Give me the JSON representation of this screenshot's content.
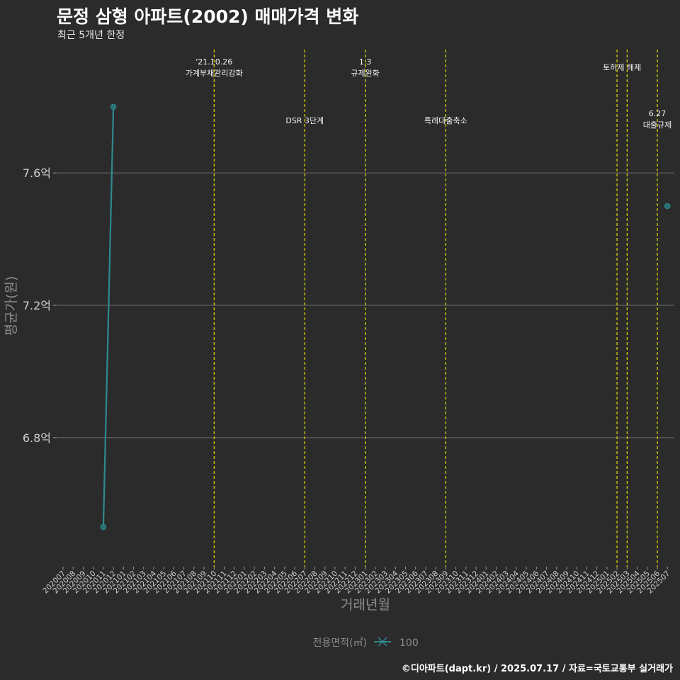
{
  "chart_data": {
    "type": "line",
    "title": "문정 삼형 아파트(2002) 매매가격 변화",
    "subtitle": "최근 5개년 한정",
    "xlabel": "거래년월",
    "ylabel": "평균가(원)",
    "categories": [
      "202007",
      "202008",
      "202009",
      "202010",
      "202011",
      "202012",
      "202101",
      "202102",
      "202103",
      "202104",
      "202105",
      "202106",
      "202107",
      "202108",
      "202109",
      "202110",
      "202111",
      "202112",
      "202201",
      "202202",
      "202203",
      "202204",
      "202205",
      "202206",
      "202207",
      "202208",
      "202209",
      "202210",
      "202211",
      "202212",
      "202301",
      "202302",
      "202303",
      "202304",
      "202305",
      "202306",
      "202307",
      "202308",
      "202309",
      "202310",
      "202311",
      "202312",
      "202401",
      "202402",
      "202403",
      "202404",
      "202405",
      "202406",
      "202407",
      "202408",
      "202409",
      "202410",
      "202411",
      "202412",
      "202501",
      "202502",
      "202503",
      "202504",
      "202505",
      "202506",
      "202507"
    ],
    "y_ticks": [
      6.8,
      7.2,
      7.6
    ],
    "y_tick_labels": [
      "6.8억",
      "7.2억",
      "7.6억"
    ],
    "ylim": [
      6.41,
      7.99
    ],
    "unit": "억",
    "series": [
      {
        "name": "100",
        "color": "#2e8a8f",
        "points": [
          {
            "x": "202011",
            "y": 6.53
          },
          {
            "x": "202012",
            "y": 7.8
          },
          {
            "x": "202507",
            "y": 7.5
          }
        ],
        "segments": [
          [
            "202011",
            "202012"
          ]
        ]
      }
    ],
    "events": [
      {
        "x": "202110",
        "lines": [
          "'21.10.26",
          "가계부채관리강화"
        ],
        "row": 0
      },
      {
        "x": "202207",
        "lines": [
          "DSR 3단계"
        ],
        "row": 1
      },
      {
        "x": "202301",
        "lines": [
          "1.3",
          "규제완화"
        ],
        "row": 0
      },
      {
        "x": "202309",
        "lines": [
          "특례대출축소"
        ],
        "row": 1
      },
      {
        "x": "202502",
        "lines": [],
        "row": 0
      },
      {
        "x": "202503",
        "lines": [
          "토허제 해제"
        ],
        "row": 0,
        "label_center_x": "202502"
      },
      {
        "x": "202506",
        "lines": [
          "6.27",
          "대출규제"
        ],
        "row": 1
      }
    ],
    "event_line_color": "#e5e500",
    "legend": {
      "title": "전용면적(㎡)",
      "entries": [
        "100"
      ],
      "position": "bottom"
    },
    "grid": true
  },
  "footer": "©디아파트(dapt.kr) / 2025.07.17 / 자료=국토교통부 실거래가"
}
